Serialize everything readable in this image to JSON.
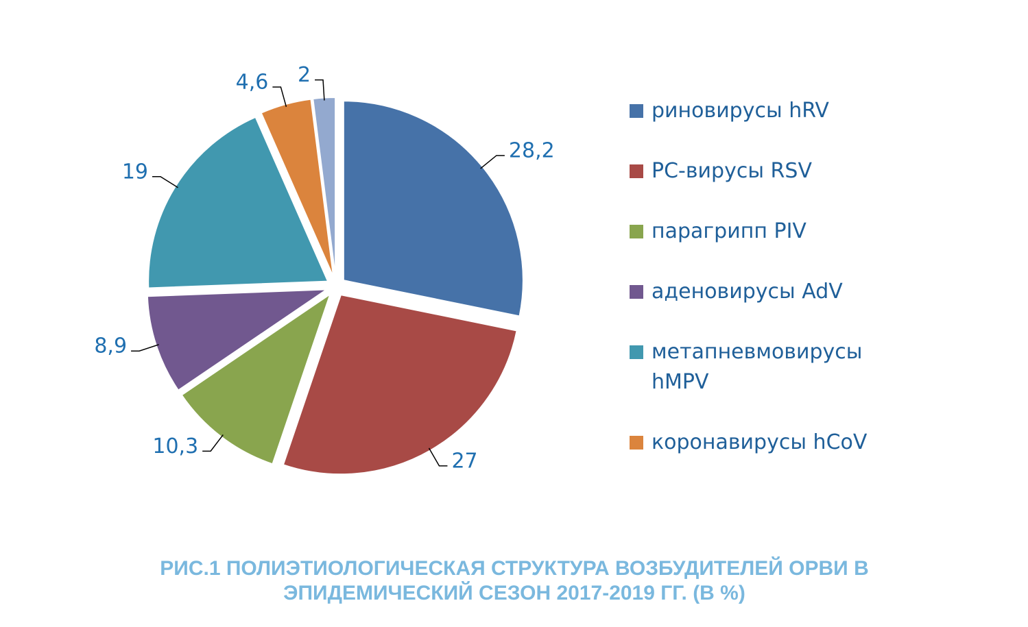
{
  "chart_data": {
    "type": "pie",
    "title": "РИС.1 ПОЛИЭТИОЛОГИЧЕСКАЯ СТРУКТУРА ВОЗБУДИТЕЛЕЙ ОРВИ В ЭПИДЕМИЧЕСКИЙ СЕЗОН 2017-2019 ГГ. (В %)",
    "categories": [
      "риновирусы hRV",
      "РС-вирусы RSV",
      "парагрипп PIV",
      "аденовирусы AdV",
      "метапневмовирусы hMPV",
      "коронавирусы hCoV",
      null
    ],
    "values": [
      28.2,
      27,
      10.3,
      8.9,
      19,
      4.6,
      2
    ],
    "value_labels": [
      "28,2",
      "27",
      "10,3",
      "8,9",
      "19",
      "4,6",
      "2"
    ],
    "colors": [
      "#4672a8",
      "#a84a46",
      "#89a54e",
      "#71588f",
      "#4198af",
      "#db843d",
      "#93a9cf"
    ],
    "legend": "right"
  }
}
